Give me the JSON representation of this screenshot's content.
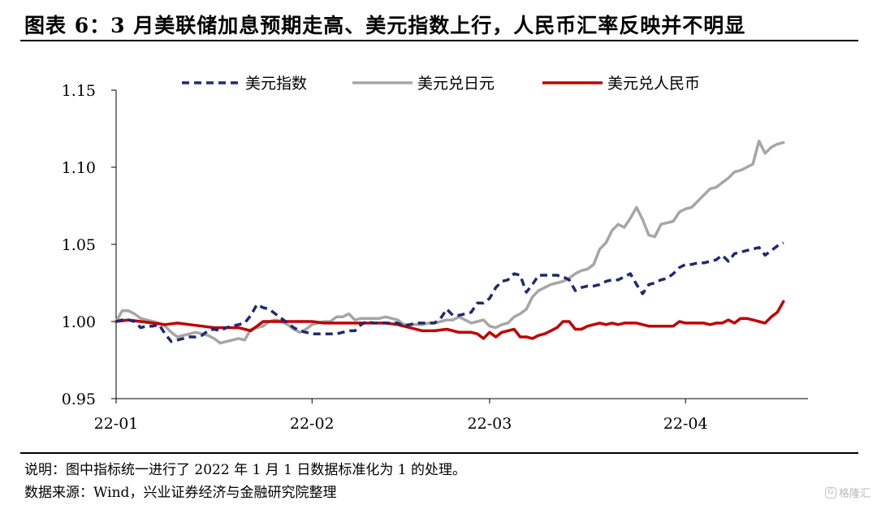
{
  "title": "图表 6：3 月美联储加息预期走高、美元指数上行，人民币汇率反映并不明显",
  "notes": {
    "line1": "说明：图中指标统一进行了 2022 年 1 月 1 日数据标准化为 1 的处理。",
    "line2": "数据来源：Wind，兴业证券经济与金融研究院整理"
  },
  "watermark": {
    "icon": "gelonghui-logo-icon",
    "text": "格隆汇"
  },
  "chart_data": {
    "type": "line",
    "ylim": [
      0.95,
      1.15
    ],
    "yticks": [
      "0.95",
      "1.00",
      "1.05",
      "1.10",
      "1.15"
    ],
    "xlim": [
      0,
      113
    ],
    "xticks": [
      {
        "x": 0,
        "label": "22-01"
      },
      {
        "x": 32,
        "label": "22-02"
      },
      {
        "x": 61,
        "label": "22-03"
      },
      {
        "x": 93,
        "label": "22-04"
      }
    ],
    "legend_position": "top",
    "grid": false,
    "series": [
      {
        "name": "美元指数",
        "color": "#1f2a6e",
        "style": "dashed",
        "points": [
          [
            0,
            1.0
          ],
          [
            1,
            1.001
          ],
          [
            2,
            1.001
          ],
          [
            3,
            1.0
          ],
          [
            4,
            0.996
          ],
          [
            5,
            0.997
          ],
          [
            6,
            0.997
          ],
          [
            7,
            0.998
          ],
          [
            8,
            0.992
          ],
          [
            9,
            0.987
          ],
          [
            10,
            0.988
          ],
          [
            11,
            0.989
          ],
          [
            12,
            0.99
          ],
          [
            13,
            0.99
          ],
          [
            14,
            0.991
          ],
          [
            15,
            0.994
          ],
          [
            16,
            0.995
          ],
          [
            17,
            0.994
          ],
          [
            18,
            0.996
          ],
          [
            19,
            0.997
          ],
          [
            20,
            0.998
          ],
          [
            21,
            0.999
          ],
          [
            22,
            1.004
          ],
          [
            23,
            1.011
          ],
          [
            24,
            1.009
          ],
          [
            25,
            1.008
          ],
          [
            26,
            1.005
          ],
          [
            27,
            1.002
          ],
          [
            28,
            0.999
          ],
          [
            29,
            0.996
          ],
          [
            30,
            0.994
          ],
          [
            31,
            0.993
          ],
          [
            32,
            0.992
          ],
          [
            33,
            0.992
          ],
          [
            34,
            0.992
          ],
          [
            35,
            0.992
          ],
          [
            36,
            0.992
          ],
          [
            37,
            0.993
          ],
          [
            38,
            0.994
          ],
          [
            39,
            0.994
          ],
          [
            40,
            0.998
          ],
          [
            41,
            1.0
          ],
          [
            42,
            0.999
          ],
          [
            43,
            0.999
          ],
          [
            44,
            0.999
          ],
          [
            45,
            0.999
          ],
          [
            46,
            0.999
          ],
          [
            47,
            0.997
          ],
          [
            48,
            0.998
          ],
          [
            49,
            0.999
          ],
          [
            50,
            0.999
          ],
          [
            51,
            0.999
          ],
          [
            52,
            0.999
          ],
          [
            53,
            1.002
          ],
          [
            54,
            1.008
          ],
          [
            55,
            1.004
          ],
          [
            56,
            1.004
          ],
          [
            57,
            1.005
          ],
          [
            58,
            1.006
          ],
          [
            59,
            1.012
          ],
          [
            60,
            1.012
          ],
          [
            61,
            1.015
          ],
          [
            62,
            1.022
          ],
          [
            63,
            1.026
          ],
          [
            64,
            1.027
          ],
          [
            65,
            1.031
          ],
          [
            66,
            1.03
          ],
          [
            67,
            1.019
          ],
          [
            68,
            1.024
          ],
          [
            69,
            1.03
          ],
          [
            70,
            1.03
          ],
          [
            71,
            1.03
          ],
          [
            72,
            1.03
          ],
          [
            73,
            1.029
          ],
          [
            74,
            1.027
          ],
          [
            75,
            1.02
          ],
          [
            76,
            1.022
          ],
          [
            77,
            1.023
          ],
          [
            78,
            1.023
          ],
          [
            79,
            1.024
          ],
          [
            80,
            1.026
          ],
          [
            81,
            1.027
          ],
          [
            82,
            1.027
          ],
          [
            83,
            1.029
          ],
          [
            84,
            1.031
          ],
          [
            85,
            1.024
          ],
          [
            86,
            1.018
          ],
          [
            87,
            1.024
          ],
          [
            88,
            1.025
          ],
          [
            89,
            1.027
          ],
          [
            90,
            1.028
          ],
          [
            91,
            1.031
          ],
          [
            92,
            1.035
          ],
          [
            93,
            1.037
          ],
          [
            94,
            1.037
          ],
          [
            95,
            1.038
          ],
          [
            96,
            1.038
          ],
          [
            97,
            1.039
          ],
          [
            98,
            1.04
          ],
          [
            99,
            1.043
          ],
          [
            100,
            1.039
          ],
          [
            101,
            1.044
          ],
          [
            102,
            1.045
          ],
          [
            103,
            1.046
          ],
          [
            104,
            1.047
          ],
          [
            105,
            1.048
          ],
          [
            106,
            1.043
          ],
          [
            107,
            1.046
          ],
          [
            108,
            1.049
          ],
          [
            109,
            1.051
          ]
        ]
      },
      {
        "name": "美元兑日元",
        "color": "#a6a6a6",
        "style": "solid",
        "points": [
          [
            0,
            1.0
          ],
          [
            1,
            1.007
          ],
          [
            2,
            1.007
          ],
          [
            3,
            1.005
          ],
          [
            4,
            1.002
          ],
          [
            5,
            1.001
          ],
          [
            6,
            1.0
          ],
          [
            7,
            0.999
          ],
          [
            8,
            0.997
          ],
          [
            9,
            0.993
          ],
          [
            10,
            0.99
          ],
          [
            11,
            0.991
          ],
          [
            12,
            0.992
          ],
          [
            13,
            0.993
          ],
          [
            14,
            0.992
          ],
          [
            15,
            0.991
          ],
          [
            16,
            0.989
          ],
          [
            17,
            0.986
          ],
          [
            18,
            0.987
          ],
          [
            19,
            0.988
          ],
          [
            20,
            0.989
          ],
          [
            21,
            0.988
          ],
          [
            22,
            0.995
          ],
          [
            23,
            0.996
          ],
          [
            24,
            0.997
          ],
          [
            25,
            1.0
          ],
          [
            26,
            1.001
          ],
          [
            27,
            1.0
          ],
          [
            28,
            0.998
          ],
          [
            29,
            0.995
          ],
          [
            30,
            0.993
          ],
          [
            31,
            0.995
          ],
          [
            32,
            0.998
          ],
          [
            33,
            0.999
          ],
          [
            34,
            1.0
          ],
          [
            35,
            1.0
          ],
          [
            36,
            1.003
          ],
          [
            37,
            1.003
          ],
          [
            38,
            1.005
          ],
          [
            39,
            1.001
          ],
          [
            40,
            1.002
          ],
          [
            41,
            1.002
          ],
          [
            42,
            1.002
          ],
          [
            43,
            1.002
          ],
          [
            44,
            1.003
          ],
          [
            45,
            1.002
          ],
          [
            46,
            1.001
          ],
          [
            47,
            0.998
          ],
          [
            48,
            0.998
          ],
          [
            49,
            0.998
          ],
          [
            50,
            0.998
          ],
          [
            51,
            0.999
          ],
          [
            52,
            0.999
          ],
          [
            53,
            1.0
          ],
          [
            54,
            1.001
          ],
          [
            55,
            1.001
          ],
          [
            56,
            1.003
          ],
          [
            57,
            1.001
          ],
          [
            58,
            0.999
          ],
          [
            59,
            1.0
          ],
          [
            60,
            1.001
          ],
          [
            61,
            0.997
          ],
          [
            62,
            0.996
          ],
          [
            63,
            0.998
          ],
          [
            64,
            0.999
          ],
          [
            65,
            1.003
          ],
          [
            66,
            1.005
          ],
          [
            67,
            1.008
          ],
          [
            68,
            1.016
          ],
          [
            69,
            1.02
          ],
          [
            70,
            1.022
          ],
          [
            71,
            1.024
          ],
          [
            72,
            1.025
          ],
          [
            73,
            1.026
          ],
          [
            74,
            1.028
          ],
          [
            75,
            1.031
          ],
          [
            76,
            1.033
          ],
          [
            77,
            1.034
          ],
          [
            78,
            1.037
          ],
          [
            79,
            1.047
          ],
          [
            80,
            1.051
          ],
          [
            81,
            1.059
          ],
          [
            82,
            1.063
          ],
          [
            83,
            1.061
          ],
          [
            84,
            1.067
          ],
          [
            85,
            1.074
          ],
          [
            86,
            1.066
          ],
          [
            87,
            1.056
          ],
          [
            88,
            1.055
          ],
          [
            89,
            1.063
          ],
          [
            90,
            1.064
          ],
          [
            91,
            1.065
          ],
          [
            92,
            1.071
          ],
          [
            93,
            1.073
          ],
          [
            94,
            1.074
          ],
          [
            95,
            1.078
          ],
          [
            96,
            1.082
          ],
          [
            97,
            1.086
          ],
          [
            98,
            1.087
          ],
          [
            99,
            1.09
          ],
          [
            100,
            1.093
          ],
          [
            101,
            1.097
          ],
          [
            102,
            1.098
          ],
          [
            103,
            1.1
          ],
          [
            104,
            1.102
          ],
          [
            105,
            1.117
          ],
          [
            106,
            1.109
          ],
          [
            107,
            1.113
          ],
          [
            108,
            1.115
          ],
          [
            109,
            1.116
          ]
        ]
      },
      {
        "name": "美元兑人民币",
        "color": "#c00000",
        "style": "solid",
        "points": [
          [
            0,
            1.0
          ],
          [
            2,
            1.001
          ],
          [
            4,
            1.0
          ],
          [
            6,
            0.999
          ],
          [
            8,
            0.998
          ],
          [
            10,
            0.999
          ],
          [
            12,
            0.998
          ],
          [
            14,
            0.997
          ],
          [
            16,
            0.996
          ],
          [
            18,
            0.996
          ],
          [
            20,
            0.996
          ],
          [
            22,
            0.994
          ],
          [
            24,
            1.0
          ],
          [
            26,
            1.0
          ],
          [
            28,
            1.0
          ],
          [
            30,
            1.0
          ],
          [
            32,
            1.0
          ],
          [
            34,
            0.999
          ],
          [
            36,
            0.999
          ],
          [
            38,
            0.999
          ],
          [
            40,
            0.999
          ],
          [
            42,
            0.999
          ],
          [
            44,
            0.999
          ],
          [
            46,
            0.998
          ],
          [
            48,
            0.996
          ],
          [
            50,
            0.994
          ],
          [
            52,
            0.994
          ],
          [
            54,
            0.995
          ],
          [
            56,
            0.993
          ],
          [
            58,
            0.993
          ],
          [
            59,
            0.992
          ],
          [
            60,
            0.989
          ],
          [
            61,
            0.993
          ],
          [
            62,
            0.99
          ],
          [
            63,
            0.993
          ],
          [
            64,
            0.994
          ],
          [
            65,
            0.995
          ],
          [
            66,
            0.99
          ],
          [
            67,
            0.99
          ],
          [
            68,
            0.989
          ],
          [
            69,
            0.991
          ],
          [
            70,
            0.992
          ],
          [
            71,
            0.994
          ],
          [
            72,
            0.996
          ],
          [
            73,
            1.0
          ],
          [
            74,
            1.0
          ],
          [
            75,
            0.995
          ],
          [
            76,
            0.995
          ],
          [
            77,
            0.997
          ],
          [
            78,
            0.998
          ],
          [
            79,
            0.999
          ],
          [
            80,
            0.998
          ],
          [
            81,
            0.999
          ],
          [
            82,
            0.998
          ],
          [
            83,
            0.999
          ],
          [
            84,
            0.999
          ],
          [
            85,
            0.999
          ],
          [
            86,
            0.998
          ],
          [
            87,
            0.997
          ],
          [
            88,
            0.997
          ],
          [
            89,
            0.997
          ],
          [
            90,
            0.997
          ],
          [
            91,
            0.997
          ],
          [
            92,
            1.0
          ],
          [
            93,
            0.999
          ],
          [
            94,
            0.999
          ],
          [
            95,
            0.999
          ],
          [
            96,
            0.999
          ],
          [
            97,
            0.998
          ],
          [
            98,
            0.999
          ],
          [
            99,
            0.999
          ],
          [
            100,
            1.001
          ],
          [
            101,
            0.999
          ],
          [
            102,
            1.002
          ],
          [
            103,
            1.002
          ],
          [
            104,
            1.001
          ],
          [
            105,
            1.0
          ],
          [
            106,
            0.999
          ],
          [
            107,
            1.003
          ],
          [
            108,
            1.006
          ],
          [
            109,
            1.013
          ]
        ]
      }
    ]
  }
}
